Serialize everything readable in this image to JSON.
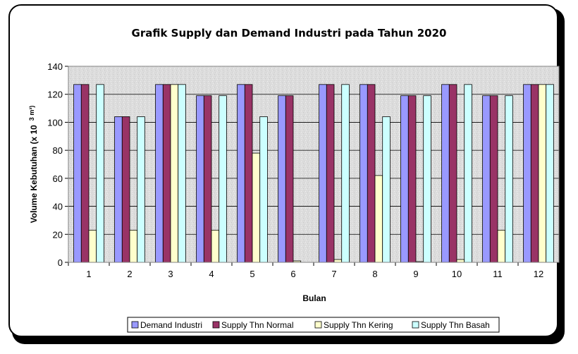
{
  "chart_data": {
    "type": "bar",
    "title": "Grafik Supply dan Demand Industri pada Tahun 2020",
    "xlabel": "Bulan",
    "ylabel": "Volume Kebutuhan (x 10",
    "ylabel_unit": "3 m³)",
    "categories": [
      "1",
      "2",
      "3",
      "4",
      "5",
      "6",
      "7",
      "8",
      "9",
      "10",
      "11",
      "12"
    ],
    "ylim": [
      0,
      140
    ],
    "yticks": [
      0,
      20,
      40,
      60,
      80,
      100,
      120,
      140
    ],
    "grid": true,
    "legend_position": "bottom",
    "series": [
      {
        "name": "Demand Industri",
        "color": "#9999ff",
        "values": [
          127,
          104,
          127,
          119,
          127,
          119,
          127,
          127,
          119,
          127,
          119,
          127
        ]
      },
      {
        "name": "Supply Thn Normal",
        "color": "#993366",
        "values": [
          127,
          104,
          127,
          119,
          127,
          119,
          127,
          127,
          119,
          127,
          119,
          127
        ]
      },
      {
        "name": "Supply Thn Kering",
        "color": "#ffffcc",
        "values": [
          23,
          23,
          127,
          23,
          78,
          1,
          2,
          62,
          0.5,
          2,
          23,
          127
        ]
      },
      {
        "name": "Supply Thn Basah",
        "color": "#ccffff",
        "values": [
          127,
          104,
          127,
          119,
          104,
          0,
          127,
          104,
          119,
          127,
          119,
          127
        ]
      }
    ]
  }
}
